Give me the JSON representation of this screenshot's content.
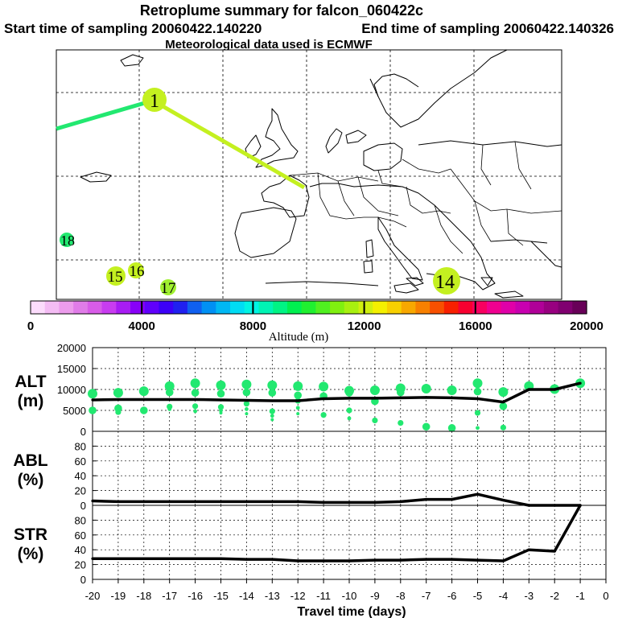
{
  "titles": {
    "main": "Retroplume summary for falcon_060422c",
    "start": "Start time of sampling 20060422.140220",
    "end": "End time of sampling 20060422.140326",
    "met": "Meteorological data used is ECMWF"
  },
  "chart_data": [
    {
      "type": "map",
      "id": "trajectory-map",
      "plume_segments": [
        {
          "from": "west edge",
          "to": "1",
          "color": "#22e870"
        },
        {
          "from": "1",
          "to": "release",
          "color": "#c4f020"
        }
      ],
      "markers": [
        {
          "label": "1",
          "color": "#c4f020"
        },
        {
          "label": "14",
          "color": "#c4f020"
        },
        {
          "label": "15",
          "color": "#c4f020"
        },
        {
          "label": "16",
          "color": "#c4f020"
        },
        {
          "label": "17",
          "color": "#a0f030"
        },
        {
          "label": "18",
          "color": "#22e870"
        }
      ]
    },
    {
      "type": "colorbar",
      "id": "altitude-colorbar",
      "label": "Altitude (m)",
      "range": [
        0,
        20000
      ],
      "ticks": [
        "0",
        "4000",
        "8000",
        "12000",
        "16000",
        "20000"
      ],
      "colors": [
        "#fcdcfc",
        "#f4bcf4",
        "#ec9cec",
        "#e07ce8",
        "#d85ce8",
        "#c83cf0",
        "#a81cf4",
        "#8800f8",
        "#6000fc",
        "#3c00f8",
        "#2020f0",
        "#1060f0",
        "#0090f4",
        "#00b8f4",
        "#00dcf4",
        "#00f4e4",
        "#00f4b4",
        "#00f484",
        "#00f050",
        "#20f030",
        "#50f020",
        "#80f010",
        "#a8f010",
        "#d0f010",
        "#f4f000",
        "#f8d000",
        "#f8a800",
        "#f88000",
        "#f85000",
        "#f82000",
        "#f80030",
        "#f80060",
        "#f00090",
        "#e000a8",
        "#c800b0",
        "#b00098",
        "#980080",
        "#800070",
        "#680058"
      ]
    },
    {
      "type": "line",
      "id": "alt-panel",
      "ylabel_lines": [
        "ALT",
        "(m)"
      ],
      "ylim": [
        0,
        20000
      ],
      "yticks": [
        "20000",
        "15000",
        "10000",
        "5000",
        "0"
      ],
      "x": [
        -20,
        -19,
        -18,
        -17,
        -16,
        -15,
        -14,
        -13,
        -12,
        -11,
        -10,
        -9,
        -8,
        -7,
        -6,
        -5,
        -4,
        -3,
        -2,
        -1
      ],
      "mean_altitude": [
        7500,
        7600,
        7600,
        7600,
        7600,
        7500,
        7400,
        7300,
        7300,
        7800,
        7900,
        7900,
        8000,
        8100,
        8000,
        7800,
        7000,
        10000,
        10000,
        11500
      ],
      "particle_clusters": [
        {
          "x": -20,
          "values": [
            9000,
            5000
          ]
        },
        {
          "x": -19,
          "values": [
            9200,
            5500,
            4600
          ]
        },
        {
          "x": -18,
          "values": [
            9600,
            5000
          ]
        },
        {
          "x": -17,
          "values": [
            10800,
            9300,
            5900,
            5300
          ]
        },
        {
          "x": -16,
          "values": [
            11500,
            9200,
            6000,
            4800
          ]
        },
        {
          "x": -15,
          "values": [
            11000,
            9000,
            5800,
            5000,
            4400
          ]
        },
        {
          "x": -14,
          "values": [
            11200,
            9300,
            6600,
            5300,
            4200
          ]
        },
        {
          "x": -13,
          "values": [
            11000,
            9200,
            4800,
            3700,
            2800
          ]
        },
        {
          "x": -12,
          "values": [
            10800,
            8600,
            7300,
            5600,
            4200
          ]
        },
        {
          "x": -11,
          "values": [
            10700,
            8400,
            3900
          ]
        },
        {
          "x": -10,
          "values": [
            9700,
            9200,
            5000,
            3100
          ]
        },
        {
          "x": -9,
          "values": [
            9800,
            7200,
            2600
          ]
        },
        {
          "x": -8,
          "values": [
            10300,
            9300,
            2000
          ]
        },
        {
          "x": -7,
          "values": [
            10200,
            1100
          ]
        },
        {
          "x": -6,
          "values": [
            9800,
            800
          ]
        },
        {
          "x": -5,
          "values": [
            11500,
            9500,
            4400,
            800
          ]
        },
        {
          "x": -4,
          "values": [
            9400,
            6000,
            900
          ]
        },
        {
          "x": -3,
          "values": [
            10800
          ]
        },
        {
          "x": -2,
          "values": [
            10100
          ]
        },
        {
          "x": -1,
          "values": [
            11500
          ]
        }
      ]
    },
    {
      "type": "line",
      "id": "abl-panel",
      "ylabel_lines": [
        "ABL",
        "(%)"
      ],
      "ylim": [
        0,
        100
      ],
      "yticks": [
        "0",
        "20",
        "40",
        "60",
        "80"
      ],
      "x": [
        -20,
        -19,
        -18,
        -17,
        -16,
        -15,
        -14,
        -13,
        -12,
        -11,
        -10,
        -9,
        -8,
        -7,
        -6,
        -5,
        -4,
        -3,
        -2,
        -1
      ],
      "values": [
        6,
        5,
        5,
        5,
        5,
        5,
        5,
        5,
        5,
        4,
        4,
        4,
        5,
        8,
        8,
        15,
        7,
        0,
        0,
        0
      ]
    },
    {
      "type": "line",
      "id": "str-panel",
      "ylabel_lines": [
        "STR",
        "(%)"
      ],
      "ylim": [
        0,
        100
      ],
      "yticks": [
        "0",
        "20",
        "40",
        "60",
        "80"
      ],
      "xlabel": "Travel time (days)",
      "xticks": [
        "-20",
        "-19",
        "-18",
        "-17",
        "-16",
        "-15",
        "-14",
        "-13",
        "-12",
        "-11",
        "-10",
        "-9",
        "-8",
        "-7",
        "-6",
        "-5",
        "-4",
        "-3",
        "-2",
        "-1",
        "0"
      ],
      "x": [
        -20,
        -19,
        -18,
        -17,
        -16,
        -15,
        -14,
        -13,
        -12,
        -11,
        -10,
        -9,
        -8,
        -7,
        -6,
        -5,
        -4,
        -3,
        -2,
        -1
      ],
      "values": [
        28,
        28,
        28,
        28,
        28,
        28,
        27,
        27,
        25,
        25,
        25,
        26,
        26,
        27,
        27,
        26,
        25,
        40,
        38,
        100
      ]
    }
  ]
}
